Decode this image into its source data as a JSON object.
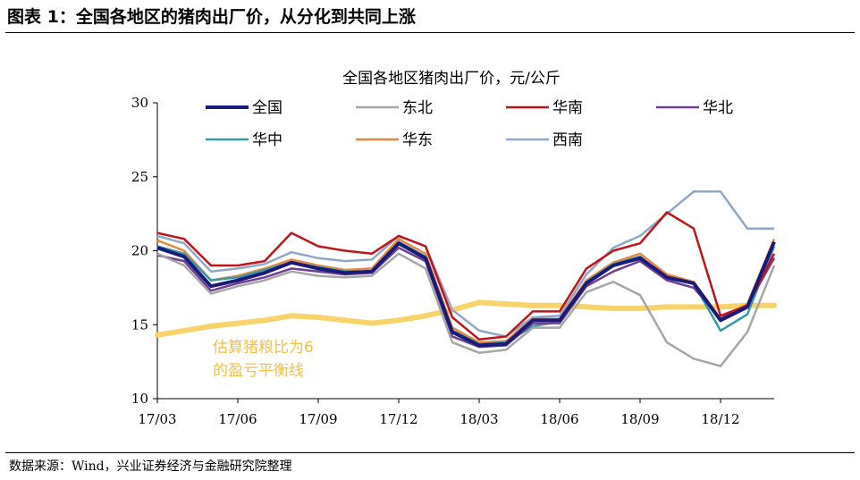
{
  "figure": {
    "title": "图表 1：全国各地区的猪肉出厂价，从分化到共同上涨",
    "source": "数据来源：Wind，兴业证券经济与金融研究院整理"
  },
  "chart_data": {
    "type": "line",
    "title": "全国各地区猪肉出厂价，元/公斤",
    "xlabel": "",
    "ylabel": "",
    "ylim": [
      10,
      30
    ],
    "y_ticks": [
      "10",
      "15",
      "20",
      "25",
      "30"
    ],
    "x_ticks": [
      "17/03",
      "17/06",
      "17/09",
      "17/12",
      "18/03",
      "18/06",
      "18/09",
      "18/12"
    ],
    "legend_position": "top",
    "grid": false,
    "x": [
      "17/03",
      "17/04",
      "17/05",
      "17/06",
      "17/07",
      "17/08",
      "17/09",
      "17/10",
      "17/11",
      "17/12",
      "18/01",
      "18/02",
      "18/03",
      "18/04",
      "18/05",
      "18/06",
      "18/07",
      "18/08",
      "18/09",
      "18/10",
      "18/11",
      "18/12",
      "19/01",
      "19/02"
    ],
    "series": [
      {
        "name": "全国",
        "color": "#1a1a78",
        "width": 4,
        "values": [
          20.2,
          19.6,
          17.6,
          18.0,
          18.5,
          19.2,
          18.8,
          18.5,
          18.6,
          20.5,
          19.5,
          14.5,
          13.6,
          13.7,
          15.3,
          15.3,
          17.8,
          19.0,
          19.5,
          18.2,
          17.8,
          15.3,
          16.2,
          20.6
        ]
      },
      {
        "name": "东北",
        "color": "#a6a6a6",
        "width": 2.5,
        "values": [
          19.8,
          19.0,
          17.1,
          17.6,
          18.0,
          18.6,
          18.3,
          18.2,
          18.3,
          19.8,
          18.8,
          13.8,
          13.1,
          13.3,
          14.8,
          14.8,
          17.2,
          17.9,
          17.0,
          13.8,
          12.7,
          12.2,
          14.5,
          19.0
        ]
      },
      {
        "name": "华南",
        "color": "#c0141c",
        "width": 2.5,
        "values": [
          21.2,
          20.8,
          19.0,
          19.0,
          19.3,
          21.2,
          20.3,
          20.0,
          19.8,
          21.0,
          20.3,
          15.5,
          14.0,
          14.2,
          15.9,
          15.9,
          18.8,
          20.0,
          20.5,
          22.6,
          21.5,
          15.6,
          16.3,
          19.8
        ]
      },
      {
        "name": "华北",
        "color": "#6f3e92",
        "width": 2.5,
        "values": [
          19.7,
          19.3,
          17.3,
          17.8,
          18.2,
          18.8,
          18.6,
          18.4,
          18.5,
          20.2,
          19.3,
          14.2,
          13.5,
          13.6,
          15.1,
          15.1,
          17.6,
          18.6,
          19.3,
          18.0,
          17.5,
          15.4,
          16.3,
          19.5
        ]
      },
      {
        "name": "华中",
        "color": "#3499a6",
        "width": 2.5,
        "values": [
          20.3,
          19.8,
          18.0,
          18.2,
          18.7,
          19.2,
          18.9,
          18.6,
          18.6,
          20.6,
          19.6,
          14.6,
          13.7,
          13.8,
          14.9,
          15.2,
          17.9,
          19.1,
          19.6,
          18.1,
          17.8,
          14.6,
          15.7,
          20.3
        ]
      },
      {
        "name": "华东",
        "color": "#e48a3e",
        "width": 2.5,
        "values": [
          20.7,
          20.0,
          18.0,
          18.3,
          18.8,
          19.4,
          19.0,
          18.7,
          18.8,
          20.8,
          19.8,
          14.8,
          13.8,
          13.9,
          15.4,
          15.4,
          18.0,
          19.2,
          19.8,
          18.4,
          17.9,
          15.4,
          16.4,
          20.8
        ]
      },
      {
        "name": "西南",
        "color": "#8fa8c8",
        "width": 2.5,
        "values": [
          21.0,
          20.5,
          18.6,
          18.8,
          19.1,
          19.9,
          19.5,
          19.3,
          19.4,
          21.0,
          20.3,
          16.0,
          14.6,
          14.2,
          15.5,
          15.6,
          18.4,
          20.2,
          21.0,
          22.5,
          24.0,
          24.0,
          21.5,
          21.5
        ]
      }
    ],
    "reference_line": {
      "label_line1": "估算猪粮比为6",
      "label_line2": "的盈亏平衡线",
      "color": "#f8d36a",
      "width": 6,
      "values": [
        14.3,
        14.6,
        14.9,
        15.1,
        15.3,
        15.6,
        15.5,
        15.3,
        15.1,
        15.3,
        15.6,
        16.0,
        16.5,
        16.4,
        16.3,
        16.3,
        16.2,
        16.1,
        16.1,
        16.2,
        16.2,
        16.2,
        16.3,
        16.3
      ]
    }
  }
}
